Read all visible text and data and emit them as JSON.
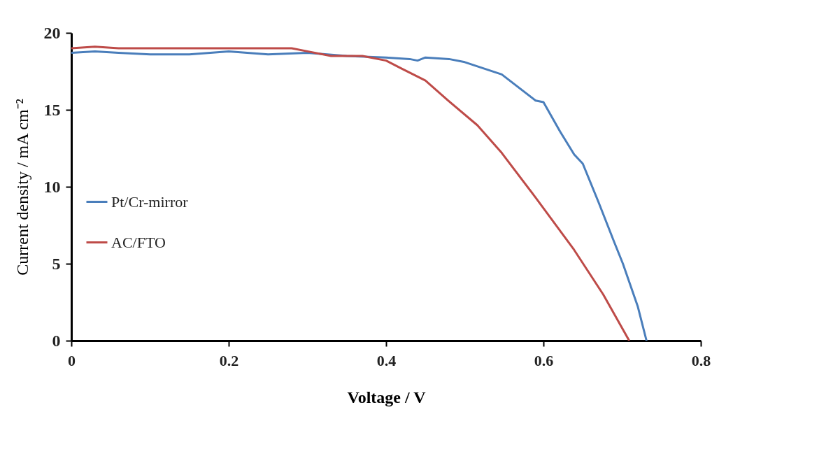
{
  "chart_data": {
    "type": "line",
    "xlabel": "Voltage / V",
    "ylabel": "Current density / mA cm⁻²",
    "xlim": [
      0,
      0.8
    ],
    "ylim": [
      0,
      20
    ],
    "xticks": [
      0,
      0.2,
      0.4,
      0.6,
      0.8
    ],
    "yticks": [
      0,
      5,
      10,
      15,
      20
    ],
    "grid": false,
    "legend": "left",
    "marker": "none",
    "line_style": "solid",
    "series": [
      {
        "name": "Pt/Cr-mirror",
        "color": "#4a7ebb",
        "x": [
          0,
          0.03,
          0.06,
          0.1,
          0.15,
          0.2,
          0.25,
          0.3,
          0.35,
          0.4,
          0.43,
          0.44,
          0.45,
          0.48,
          0.5,
          0.547,
          0.59,
          0.6,
          0.621,
          0.639,
          0.65,
          0.67,
          0.69,
          0.701,
          0.72,
          0.731
        ],
        "values": [
          18.7,
          18.8,
          18.7,
          18.6,
          18.6,
          18.8,
          18.6,
          18.7,
          18.5,
          18.4,
          18.3,
          18.2,
          18.4,
          18.3,
          18.1,
          17.3,
          15.6,
          15.5,
          13.6,
          12.1,
          11.5,
          9.0,
          6.4,
          5.0,
          2.2,
          0
        ]
      },
      {
        "name": "AC/FTO",
        "color": "#be4b48",
        "x": [
          0,
          0.03,
          0.06,
          0.1,
          0.15,
          0.2,
          0.25,
          0.28,
          0.3,
          0.33,
          0.37,
          0.4,
          0.419,
          0.45,
          0.479,
          0.516,
          0.547,
          0.59,
          0.639,
          0.676,
          0.709
        ],
        "values": [
          19.0,
          19.1,
          19.0,
          19.0,
          19.0,
          19.0,
          19.0,
          19.0,
          18.8,
          18.5,
          18.5,
          18.2,
          17.7,
          16.9,
          15.6,
          14.0,
          12.2,
          9.3,
          5.9,
          3.0,
          0
        ]
      }
    ]
  }
}
